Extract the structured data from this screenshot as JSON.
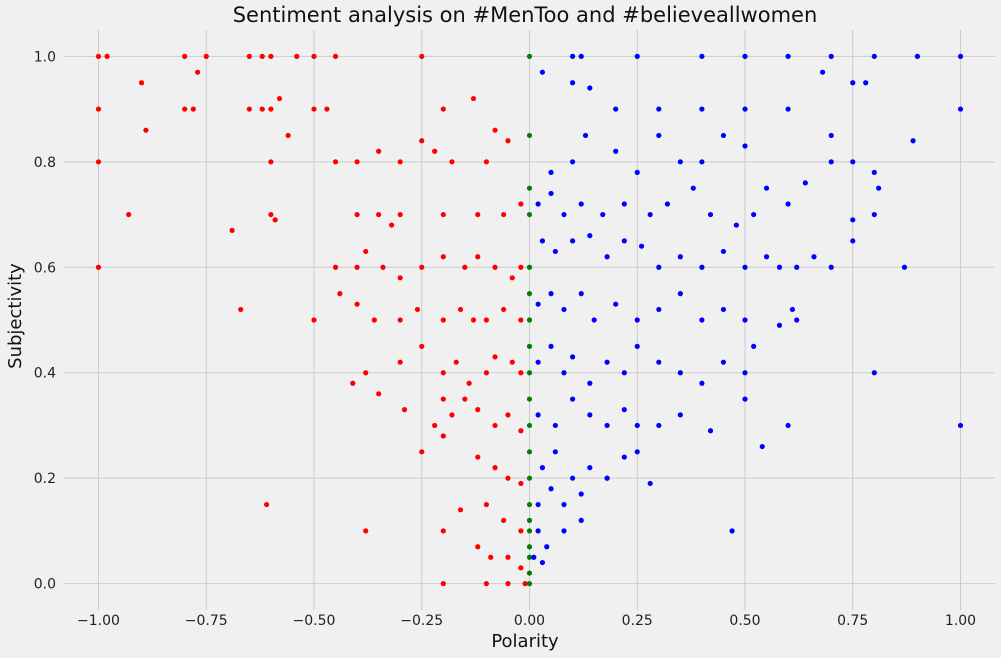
{
  "chart_data": {
    "type": "scatter",
    "title": "Sentiment analysis on #MenToo and #believeallwomen",
    "xlabel": "Polarity",
    "ylabel": "Subjectivity",
    "xlim": [
      -1.08,
      1.08
    ],
    "ylim": [
      -0.05,
      1.05
    ],
    "xticks": [
      -1.0,
      -0.75,
      -0.5,
      -0.25,
      0.0,
      0.25,
      0.5,
      0.75,
      1.0
    ],
    "xtick_labels": [
      "−1.00",
      "−0.75",
      "−0.50",
      "−0.25",
      "0.00",
      "0.25",
      "0.50",
      "0.75",
      "1.00"
    ],
    "yticks": [
      0.0,
      0.2,
      0.4,
      0.6,
      0.8,
      1.0
    ],
    "ytick_labels": [
      "0.0",
      "0.2",
      "0.4",
      "0.6",
      "0.8",
      "1.0"
    ],
    "grid": true,
    "series": [
      {
        "color": "#ff0000",
        "points": [
          [
            -1.0,
            1.0
          ],
          [
            -0.98,
            1.0
          ],
          [
            -0.8,
            1.0
          ],
          [
            -0.75,
            1.0
          ],
          [
            -0.65,
            1.0
          ],
          [
            -0.62,
            1.0
          ],
          [
            -0.6,
            1.0
          ],
          [
            -0.54,
            1.0
          ],
          [
            -0.5,
            1.0
          ],
          [
            -0.45,
            1.0
          ],
          [
            -0.25,
            1.0
          ],
          [
            -0.9,
            0.95
          ],
          [
            -0.77,
            0.97
          ],
          [
            -0.8,
            0.9
          ],
          [
            -0.78,
            0.9
          ],
          [
            -1.0,
            0.9
          ],
          [
            -0.65,
            0.9
          ],
          [
            -0.62,
            0.9
          ],
          [
            -0.6,
            0.9
          ],
          [
            -0.58,
            0.92
          ],
          [
            -0.5,
            0.9
          ],
          [
            -0.47,
            0.9
          ],
          [
            -0.2,
            0.9
          ],
          [
            -0.13,
            0.92
          ],
          [
            -0.89,
            0.86
          ],
          [
            -0.56,
            0.85
          ],
          [
            -1.0,
            0.8
          ],
          [
            -0.6,
            0.8
          ],
          [
            -0.45,
            0.8
          ],
          [
            -0.4,
            0.8
          ],
          [
            -0.35,
            0.82
          ],
          [
            -0.3,
            0.8
          ],
          [
            -0.25,
            0.84
          ],
          [
            -0.22,
            0.82
          ],
          [
            -0.18,
            0.8
          ],
          [
            -0.08,
            0.86
          ],
          [
            -0.05,
            0.84
          ],
          [
            -0.1,
            0.8
          ],
          [
            -0.93,
            0.7
          ],
          [
            -0.6,
            0.7
          ],
          [
            -0.59,
            0.69
          ],
          [
            -0.69,
            0.67
          ],
          [
            -0.4,
            0.7
          ],
          [
            -0.35,
            0.7
          ],
          [
            -0.32,
            0.68
          ],
          [
            -0.3,
            0.7
          ],
          [
            -0.2,
            0.7
          ],
          [
            -0.12,
            0.7
          ],
          [
            -0.06,
            0.7
          ],
          [
            -0.02,
            0.72
          ],
          [
            -1.0,
            0.6
          ],
          [
            -0.45,
            0.6
          ],
          [
            -0.4,
            0.6
          ],
          [
            -0.38,
            0.63
          ],
          [
            -0.34,
            0.6
          ],
          [
            -0.3,
            0.58
          ],
          [
            -0.25,
            0.6
          ],
          [
            -0.2,
            0.62
          ],
          [
            -0.15,
            0.6
          ],
          [
            -0.12,
            0.62
          ],
          [
            -0.08,
            0.6
          ],
          [
            -0.04,
            0.58
          ],
          [
            -0.02,
            0.6
          ],
          [
            -0.67,
            0.52
          ],
          [
            -0.5,
            0.5
          ],
          [
            -0.44,
            0.55
          ],
          [
            -0.4,
            0.53
          ],
          [
            -0.36,
            0.5
          ],
          [
            -0.3,
            0.5
          ],
          [
            -0.26,
            0.52
          ],
          [
            -0.2,
            0.5
          ],
          [
            -0.16,
            0.52
          ],
          [
            -0.13,
            0.5
          ],
          [
            -0.1,
            0.5
          ],
          [
            -0.06,
            0.52
          ],
          [
            -0.02,
            0.5
          ],
          [
            -0.41,
            0.38
          ],
          [
            -0.38,
            0.4
          ],
          [
            -0.3,
            0.42
          ],
          [
            -0.25,
            0.45
          ],
          [
            -0.2,
            0.4
          ],
          [
            -0.17,
            0.42
          ],
          [
            -0.14,
            0.38
          ],
          [
            -0.1,
            0.4
          ],
          [
            -0.08,
            0.43
          ],
          [
            -0.04,
            0.42
          ],
          [
            -0.02,
            0.4
          ],
          [
            -0.35,
            0.36
          ],
          [
            -0.29,
            0.33
          ],
          [
            -0.2,
            0.35
          ],
          [
            -0.22,
            0.3
          ],
          [
            -0.18,
            0.32
          ],
          [
            -0.15,
            0.35
          ],
          [
            -0.12,
            0.33
          ],
          [
            -0.08,
            0.3
          ],
          [
            -0.05,
            0.32
          ],
          [
            -0.02,
            0.29
          ],
          [
            -0.25,
            0.25
          ],
          [
            -0.2,
            0.28
          ],
          [
            -0.12,
            0.24
          ],
          [
            -0.08,
            0.22
          ],
          [
            -0.05,
            0.2
          ],
          [
            -0.02,
            0.19
          ],
          [
            -0.61,
            0.15
          ],
          [
            -0.16,
            0.14
          ],
          [
            -0.1,
            0.15
          ],
          [
            -0.06,
            0.12
          ],
          [
            -0.02,
            0.1
          ],
          [
            -0.38,
            0.1
          ],
          [
            -0.2,
            0.1
          ],
          [
            -0.12,
            0.07
          ],
          [
            -0.09,
            0.05
          ],
          [
            -0.05,
            0.05
          ],
          [
            -0.02,
            0.03
          ],
          [
            -0.2,
            0.0
          ],
          [
            -0.1,
            0.0
          ],
          [
            -0.05,
            0.0
          ],
          [
            -0.01,
            0.0
          ]
        ]
      },
      {
        "color": "#008000",
        "points": [
          [
            0.0,
            1.0
          ],
          [
            0.0,
            0.85
          ],
          [
            0.0,
            0.75
          ],
          [
            0.0,
            0.7
          ],
          [
            0.0,
            0.6
          ],
          [
            0.0,
            0.55
          ],
          [
            0.0,
            0.5
          ],
          [
            0.0,
            0.45
          ],
          [
            0.0,
            0.4
          ],
          [
            0.0,
            0.35
          ],
          [
            0.0,
            0.3
          ],
          [
            0.0,
            0.25
          ],
          [
            0.0,
            0.2
          ],
          [
            0.0,
            0.15
          ],
          [
            0.0,
            0.12
          ],
          [
            0.0,
            0.1
          ],
          [
            0.0,
            0.07
          ],
          [
            0.0,
            0.05
          ],
          [
            0.0,
            0.02
          ],
          [
            0.0,
            0.0
          ]
        ]
      },
      {
        "color": "#0000ff",
        "points": [
          [
            0.1,
            1.0
          ],
          [
            0.12,
            1.0
          ],
          [
            0.25,
            1.0
          ],
          [
            0.4,
            1.0
          ],
          [
            0.5,
            1.0
          ],
          [
            0.6,
            1.0
          ],
          [
            0.7,
            1.0
          ],
          [
            0.8,
            1.0
          ],
          [
            0.9,
            1.0
          ],
          [
            1.0,
            1.0
          ],
          [
            0.03,
            0.97
          ],
          [
            0.1,
            0.95
          ],
          [
            0.14,
            0.94
          ],
          [
            0.2,
            0.9
          ],
          [
            0.3,
            0.9
          ],
          [
            0.4,
            0.9
          ],
          [
            0.5,
            0.9
          ],
          [
            0.6,
            0.9
          ],
          [
            0.68,
            0.97
          ],
          [
            0.75,
            0.95
          ],
          [
            0.78,
            0.95
          ],
          [
            1.0,
            0.9
          ],
          [
            0.05,
            0.78
          ],
          [
            0.1,
            0.8
          ],
          [
            0.13,
            0.85
          ],
          [
            0.2,
            0.82
          ],
          [
            0.25,
            0.78
          ],
          [
            0.3,
            0.85
          ],
          [
            0.35,
            0.8
          ],
          [
            0.4,
            0.8
          ],
          [
            0.45,
            0.85
          ],
          [
            0.5,
            0.83
          ],
          [
            0.7,
            0.85
          ],
          [
            0.7,
            0.8
          ],
          [
            0.75,
            0.8
          ],
          [
            0.8,
            0.78
          ],
          [
            0.81,
            0.75
          ],
          [
            0.89,
            0.84
          ],
          [
            0.02,
            0.72
          ],
          [
            0.05,
            0.74
          ],
          [
            0.08,
            0.7
          ],
          [
            0.12,
            0.72
          ],
          [
            0.17,
            0.7
          ],
          [
            0.22,
            0.72
          ],
          [
            0.28,
            0.7
          ],
          [
            0.32,
            0.72
          ],
          [
            0.38,
            0.75
          ],
          [
            0.42,
            0.7
          ],
          [
            0.48,
            0.68
          ],
          [
            0.52,
            0.7
          ],
          [
            0.55,
            0.75
          ],
          [
            0.6,
            0.72
          ],
          [
            0.64,
            0.76
          ],
          [
            0.75,
            0.69
          ],
          [
            0.8,
            0.7
          ],
          [
            0.03,
            0.65
          ],
          [
            0.06,
            0.63
          ],
          [
            0.1,
            0.65
          ],
          [
            0.14,
            0.66
          ],
          [
            0.18,
            0.62
          ],
          [
            0.22,
            0.65
          ],
          [
            0.26,
            0.64
          ],
          [
            0.3,
            0.6
          ],
          [
            0.35,
            0.62
          ],
          [
            0.4,
            0.6
          ],
          [
            0.45,
            0.63
          ],
          [
            0.5,
            0.6
          ],
          [
            0.55,
            0.62
          ],
          [
            0.58,
            0.6
          ],
          [
            0.62,
            0.6
          ],
          [
            0.66,
            0.62
          ],
          [
            0.7,
            0.6
          ],
          [
            0.75,
            0.65
          ],
          [
            0.87,
            0.6
          ],
          [
            0.02,
            0.53
          ],
          [
            0.05,
            0.55
          ],
          [
            0.08,
            0.52
          ],
          [
            0.12,
            0.55
          ],
          [
            0.15,
            0.5
          ],
          [
            0.2,
            0.53
          ],
          [
            0.25,
            0.5
          ],
          [
            0.3,
            0.52
          ],
          [
            0.35,
            0.55
          ],
          [
            0.4,
            0.5
          ],
          [
            0.45,
            0.52
          ],
          [
            0.5,
            0.5
          ],
          [
            0.52,
            0.45
          ],
          [
            0.58,
            0.49
          ],
          [
            0.62,
            0.5
          ],
          [
            0.61,
            0.52
          ],
          [
            0.02,
            0.42
          ],
          [
            0.05,
            0.45
          ],
          [
            0.08,
            0.4
          ],
          [
            0.1,
            0.43
          ],
          [
            0.14,
            0.38
          ],
          [
            0.18,
            0.42
          ],
          [
            0.22,
            0.4
          ],
          [
            0.25,
            0.45
          ],
          [
            0.3,
            0.42
          ],
          [
            0.35,
            0.4
          ],
          [
            0.4,
            0.38
          ],
          [
            0.45,
            0.42
          ],
          [
            0.5,
            0.4
          ],
          [
            0.5,
            0.35
          ],
          [
            0.8,
            0.4
          ],
          [
            0.02,
            0.32
          ],
          [
            0.06,
            0.3
          ],
          [
            0.1,
            0.35
          ],
          [
            0.14,
            0.32
          ],
          [
            0.18,
            0.3
          ],
          [
            0.22,
            0.33
          ],
          [
            0.25,
            0.3
          ],
          [
            0.3,
            0.3
          ],
          [
            0.35,
            0.32
          ],
          [
            0.42,
            0.29
          ],
          [
            0.6,
            0.3
          ],
          [
            1.0,
            0.3
          ],
          [
            0.03,
            0.22
          ],
          [
            0.06,
            0.25
          ],
          [
            0.1,
            0.2
          ],
          [
            0.14,
            0.22
          ],
          [
            0.18,
            0.2
          ],
          [
            0.22,
            0.24
          ],
          [
            0.25,
            0.25
          ],
          [
            0.28,
            0.19
          ],
          [
            0.54,
            0.26
          ],
          [
            0.02,
            0.15
          ],
          [
            0.05,
            0.18
          ],
          [
            0.08,
            0.15
          ],
          [
            0.12,
            0.17
          ],
          [
            0.18,
            0.2
          ],
          [
            0.02,
            0.1
          ],
          [
            0.04,
            0.07
          ],
          [
            0.08,
            0.1
          ],
          [
            0.12,
            0.12
          ],
          [
            0.47,
            0.1
          ],
          [
            0.01,
            0.05
          ],
          [
            0.03,
            0.04
          ]
        ]
      }
    ]
  }
}
